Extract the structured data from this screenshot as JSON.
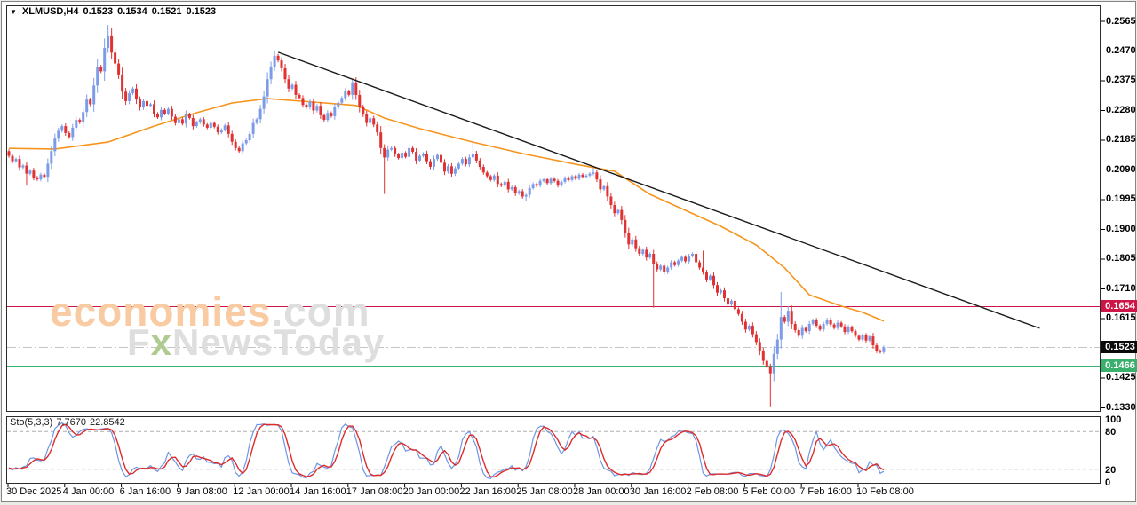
{
  "header": {
    "dropdown_icon": "▼",
    "symbol_period": "XLMUSD,H4",
    "open": "0.1523",
    "high": "0.1534",
    "low": "0.1521",
    "close": "0.1523"
  },
  "watermark": {
    "brand_colored": "economies",
    "brand_gray": ".com",
    "sub_f": "F",
    "sub_x": "x",
    "sub_rest": "NewsToday"
  },
  "indicator_label": {
    "name": "Sto(5,3,3)",
    "k_value": "7.7670",
    "d_value": "22.8542"
  },
  "colors": {
    "bull": "#7D9CE8",
    "bear": "#E03232",
    "ma": "#F7941D",
    "trendline": "#1A1A1A",
    "resistance": "#CE1548",
    "support": "#3BAF6E",
    "current_line": "#C4C4C4",
    "badge_current_bg": "#0A0A0A",
    "sto_k": "#6E96E2",
    "sto_d": "#DD2C2C",
    "sto_levels": "#AFAFAF",
    "wm_orange": "#F8CBA2",
    "wm_gray": "#DEDEDE",
    "wm_green": "#AFCB91"
  },
  "price_axis": {
    "ticks": [
      0.2565,
      0.247,
      0.2375,
      0.228,
      0.2185,
      0.209,
      0.1995,
      0.19,
      0.1805,
      0.171,
      0.1615,
      0.1425,
      0.133
    ],
    "badges": [
      {
        "text": "0.1654",
        "price": 0.1654,
        "bg": "#CE1548"
      },
      {
        "text": "0.1523",
        "price": 0.1523,
        "bg": "#0A0A0A"
      },
      {
        "text": "0.1466",
        "price": 0.1466,
        "bg": "#3BAF6E"
      }
    ]
  },
  "time_axis": {
    "labels": [
      "30 Dec 2025",
      "4 Jan 00:00",
      "6 Jan 16:00",
      "9 Jan 08:00",
      "12 Jan 00:00",
      "14 Jan 16:00",
      "17 Jan 08:00",
      "20 Jan 00:00",
      "22 Jan 16:00",
      "25 Jan 08:00",
      "28 Jan 00:00",
      "30 Jan 16:00",
      "2 Feb 08:00",
      "5 Feb 00:00",
      "7 Feb 16:00",
      "10 Feb 08:00"
    ]
  },
  "sto_axis": {
    "labels": [
      "100",
      "80",
      "20",
      "0"
    ],
    "values": [
      100,
      80,
      20,
      0
    ]
  },
  "chart_data": {
    "type": "candlestick",
    "title": "XLMUSD,H4",
    "symbol": "XLMUSD",
    "timeframe": "H4",
    "ylim": [
      0.1295,
      0.2612
    ],
    "grid": false,
    "open_first": 0.215,
    "closes": [
      0.2135,
      0.2118,
      0.2125,
      0.2098,
      0.2104,
      0.2078,
      0.2088,
      0.2066,
      0.206,
      0.2075,
      0.2068,
      0.211,
      0.215,
      0.219,
      0.2215,
      0.223,
      0.2208,
      0.2195,
      0.2225,
      0.225,
      0.2242,
      0.2275,
      0.2315,
      0.23,
      0.236,
      0.242,
      0.2405,
      0.248,
      0.252,
      0.2465,
      0.243,
      0.2395,
      0.234,
      0.231,
      0.2335,
      0.235,
      0.2315,
      0.229,
      0.231,
      0.2295,
      0.23,
      0.227,
      0.2258,
      0.2282,
      0.227,
      0.2285,
      0.226,
      0.224,
      0.2252,
      0.2238,
      0.2268,
      0.2256,
      0.223,
      0.2242,
      0.2252,
      0.2235,
      0.2225,
      0.224,
      0.2228,
      0.221,
      0.2218,
      0.2232,
      0.2205,
      0.218,
      0.216,
      0.215,
      0.2175,
      0.2185,
      0.2205,
      0.224,
      0.2252,
      0.2285,
      0.2325,
      0.238,
      0.242,
      0.2455,
      0.244,
      0.2415,
      0.238,
      0.235,
      0.2362,
      0.233,
      0.232,
      0.2298,
      0.229,
      0.2308,
      0.228,
      0.2295,
      0.2265,
      0.225,
      0.2272,
      0.2262,
      0.229,
      0.2305,
      0.232,
      0.2342,
      0.233,
      0.237,
      0.233,
      0.229,
      0.2268,
      0.224,
      0.2255,
      0.2235,
      0.221,
      0.216,
      0.213,
      0.2155,
      0.216,
      0.214,
      0.2128,
      0.2145,
      0.2132,
      0.216,
      0.2148,
      0.212,
      0.2135,
      0.2142,
      0.2118,
      0.21,
      0.2125,
      0.2138,
      0.2113,
      0.2085,
      0.2102,
      0.2078,
      0.2095,
      0.211,
      0.2125,
      0.2108,
      0.213,
      0.2142,
      0.212,
      0.21,
      0.2082,
      0.207,
      0.2058,
      0.2072,
      0.2045,
      0.204,
      0.2052,
      0.2028,
      0.2035,
      0.2015,
      0.2022,
      0.2005,
      0.201,
      0.2032,
      0.2045,
      0.204,
      0.2055,
      0.206,
      0.2048,
      0.2062,
      0.2055,
      0.204,
      0.2052,
      0.2065,
      0.2058,
      0.207,
      0.2062,
      0.2075,
      0.2068,
      0.2072,
      0.2078,
      0.2082,
      0.206,
      0.2028,
      0.2038,
      0.2005,
      0.1978,
      0.1952,
      0.1962,
      0.193,
      0.189,
      0.1852,
      0.1868,
      0.184,
      0.1822,
      0.1835,
      0.181,
      0.1822,
      0.179,
      0.1772,
      0.1784,
      0.1763,
      0.1778,
      0.1795,
      0.1786,
      0.18,
      0.1812,
      0.1798,
      0.1815,
      0.1822,
      0.1795,
      0.1778,
      0.1762,
      0.174,
      0.1752,
      0.1722,
      0.1698,
      0.1705,
      0.168,
      0.166,
      0.1672,
      0.1645,
      0.163,
      0.1605,
      0.158,
      0.1592,
      0.1565,
      0.154,
      0.151,
      0.148,
      0.1462,
      0.144,
      0.1502,
      0.1548,
      0.162,
      0.1605,
      0.164,
      0.1598,
      0.1578,
      0.156,
      0.1585,
      0.1575,
      0.1598,
      0.161,
      0.1592,
      0.158,
      0.1598,
      0.1612,
      0.1596,
      0.1585,
      0.1602,
      0.159,
      0.1572,
      0.1588,
      0.1575,
      0.156,
      0.1548,
      0.1562,
      0.1545,
      0.1558,
      0.153,
      0.1512,
      0.1508,
      0.1523
    ],
    "wick_overrides": {
      "5": {
        "low": 0.204
      },
      "28": {
        "high": 0.2553
      },
      "75": {
        "high": 0.2472
      },
      "97": {
        "high": 0.2382
      },
      "106": {
        "low": 0.2013
      },
      "131": {
        "high": 0.2185
      },
      "146": {
        "low": 0.1992
      },
      "165": {
        "high": 0.2095
      },
      "182": {
        "low": 0.165
      },
      "196": {
        "high": 0.1832
      },
      "215": {
        "low": 0.1332
      },
      "218": {
        "high": 0.17
      }
    },
    "ma_line": {
      "name": "moving-average",
      "points_bar_price": [
        [
          0,
          0.2159
        ],
        [
          13,
          0.2157
        ],
        [
          28,
          0.2179
        ],
        [
          41,
          0.223
        ],
        [
          53,
          0.2273
        ],
        [
          63,
          0.2304
        ],
        [
          73,
          0.2318
        ],
        [
          86,
          0.2307
        ],
        [
          98,
          0.2296
        ],
        [
          106,
          0.2256
        ],
        [
          116,
          0.2222
        ],
        [
          131,
          0.2179
        ],
        [
          146,
          0.214
        ],
        [
          161,
          0.2106
        ],
        [
          171,
          0.2086
        ],
        [
          181,
          0.2012
        ],
        [
          191,
          0.1961
        ],
        [
          201,
          0.191
        ],
        [
          211,
          0.185
        ],
        [
          219,
          0.1777
        ],
        [
          226,
          0.1691
        ],
        [
          235,
          0.1655
        ],
        [
          241,
          0.1635
        ],
        [
          247,
          0.1607
        ]
      ]
    },
    "trendline": {
      "start": {
        "bar": 76,
        "price": 0.2466
      },
      "end": {
        "bar": 291,
        "price": 0.1584
      }
    },
    "hlines": [
      {
        "price": 0.1654,
        "role": "resistance"
      },
      {
        "price": 0.1523,
        "role": "current"
      },
      {
        "price": 0.1466,
        "role": "support"
      }
    ],
    "stochastic": {
      "k_period": 5,
      "slowing": 3,
      "d_period": 3,
      "levels": [
        80,
        20
      ],
      "k_current": 7.767,
      "d_current": 22.8542
    }
  }
}
